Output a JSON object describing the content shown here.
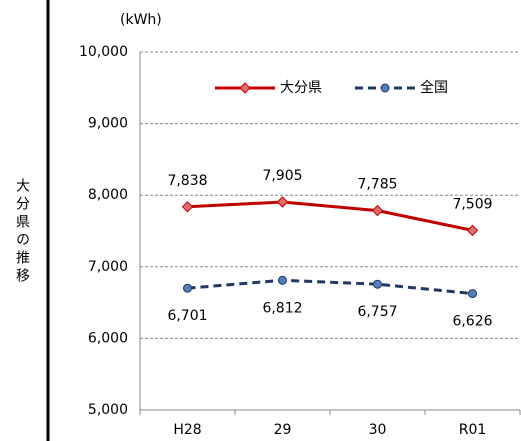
{
  "chart_data": {
    "type": "line",
    "side_label": "大分県の推移",
    "unit_label": "(kWh)",
    "categories": [
      "H28",
      "29",
      "30",
      "R01"
    ],
    "series": [
      {
        "name": "大分県",
        "color": "#c00000",
        "marker": "diamond",
        "dash": false,
        "label_position": "above",
        "values": [
          7838,
          7905,
          7785,
          7509
        ],
        "value_labels": [
          "7,838",
          "7,905",
          "7,785",
          "7,509"
        ]
      },
      {
        "name": "全国",
        "color": "#1f3864",
        "marker": "circle",
        "dash": true,
        "label_position": "below",
        "values": [
          6701,
          6812,
          6757,
          6626
        ],
        "value_labels": [
          "6,701",
          "6,812",
          "6,757",
          "6,626"
        ]
      }
    ],
    "ylim": [
      5000,
      10000
    ],
    "yticks": [
      {
        "value": 5000,
        "label": "5,000"
      },
      {
        "value": 6000,
        "label": "6,000"
      },
      {
        "value": 7000,
        "label": "7,000"
      },
      {
        "value": 8000,
        "label": "8,000"
      },
      {
        "value": 9000,
        "label": "9,000"
      },
      {
        "value": 10000,
        "label": "10,000"
      }
    ],
    "grid": true,
    "legend": "top"
  }
}
